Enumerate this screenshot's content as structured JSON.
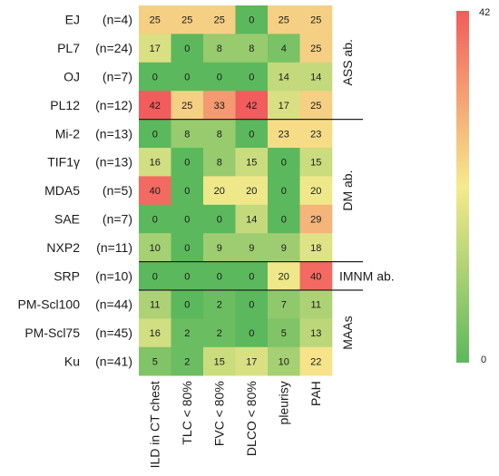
{
  "chart_data": {
    "type": "heatmap",
    "title": "",
    "xlabel": "",
    "ylabel": "",
    "rows": [
      {
        "antibody": "EJ",
        "n": "(n=4)"
      },
      {
        "antibody": "PL7",
        "n": "(n=24)"
      },
      {
        "antibody": "OJ",
        "n": "(n=7)"
      },
      {
        "antibody": "PL12",
        "n": "(n=12)"
      },
      {
        "antibody": "Mi-2",
        "n": "(n=13)"
      },
      {
        "antibody": "TIF1γ",
        "n": "(n=13)"
      },
      {
        "antibody": "MDA5",
        "n": "(n=5)"
      },
      {
        "antibody": "SAE",
        "n": "(n=7)"
      },
      {
        "antibody": "NXP2",
        "n": "(n=11)"
      },
      {
        "antibody": "SRP",
        "n": "(n=10)"
      },
      {
        "antibody": "PM-Scl100",
        "n": "(n=44)"
      },
      {
        "antibody": "PM-Scl75",
        "n": "(n=45)"
      },
      {
        "antibody": "Ku",
        "n": "(n=41)"
      }
    ],
    "columns": [
      "ILD in CT chest",
      "TLC < 80%",
      "FVC < 80%",
      "DLCO < 80%",
      "pleurisy",
      "PAH"
    ],
    "values": [
      [
        25,
        25,
        25,
        0,
        25,
        25
      ],
      [
        17,
        0,
        8,
        8,
        4,
        25
      ],
      [
        0,
        0,
        0,
        0,
        14,
        14
      ],
      [
        42,
        25,
        33,
        42,
        17,
        25
      ],
      [
        0,
        8,
        8,
        0,
        23,
        23
      ],
      [
        16,
        0,
        8,
        15,
        0,
        15
      ],
      [
        40,
        0,
        20,
        20,
        0,
        20
      ],
      [
        0,
        0,
        0,
        14,
        0,
        29
      ],
      [
        10,
        0,
        9,
        9,
        9,
        18
      ],
      [
        0,
        0,
        0,
        0,
        20,
        40
      ],
      [
        11,
        0,
        2,
        0,
        7,
        11
      ],
      [
        16,
        2,
        2,
        0,
        5,
        13
      ],
      [
        5,
        2,
        15,
        17,
        10,
        22
      ]
    ],
    "groups": [
      {
        "label": "ASS ab.",
        "start": 0,
        "end": 3
      },
      {
        "label": "DM ab.",
        "start": 4,
        "end": 8
      },
      {
        "label": "IMNM ab.",
        "start": 9,
        "end": 9
      },
      {
        "label": "MAAs",
        "start": 10,
        "end": 12
      }
    ],
    "colorbar": {
      "min": 0,
      "max": 42,
      "min_label": "0",
      "max_label": "42",
      "colors": [
        "#5cb85c",
        "#f6ea8c",
        "#f25c5c"
      ]
    }
  }
}
